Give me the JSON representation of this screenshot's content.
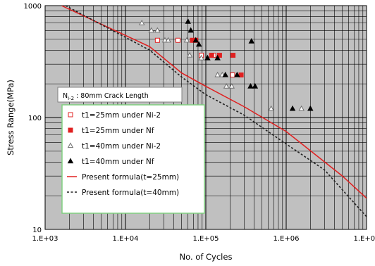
{
  "chart_data": {
    "type": "scatter",
    "title": "",
    "xlabel": "No. of Cycles",
    "ylabel": "Stress Range(MPa)",
    "xscale": "log",
    "yscale": "log",
    "xlim": [
      1000,
      10000000
    ],
    "ylim": [
      10,
      1000
    ],
    "grid": true,
    "x_tick_labels": [
      "1.E+03",
      "1.E+04",
      "1.E+05",
      "1.E+06",
      "1.E+07"
    ],
    "y_tick_labels": [
      "10",
      "100",
      "1000"
    ],
    "annotation": {
      "prefix": "N",
      "subscript": "i-2",
      "suffix": " : 80mm Crack Length"
    },
    "legend_placement": "center-left",
    "series": [
      {
        "name": "t1=25mm under Ni-2",
        "kind": "scatter",
        "marker": "open-square",
        "color": "#e02020",
        "points": [
          [
            25000,
            490
          ],
          [
            45000,
            490
          ],
          [
            88000,
            360
          ],
          [
            125000,
            360
          ],
          [
            215000,
            240
          ]
        ]
      },
      {
        "name": "t1=25mm under Nf",
        "kind": "scatter",
        "marker": "filled-square",
        "color": "#e02020",
        "points": [
          [
            68000,
            490
          ],
          [
            75000,
            490
          ],
          [
            118000,
            360
          ],
          [
            148000,
            360
          ],
          [
            218000,
            360
          ],
          [
            275000,
            240
          ]
        ]
      },
      {
        "name": "t1=40mm under Ni-2",
        "kind": "scatter",
        "marker": "open-triangle",
        "color": "#707070",
        "points": [
          [
            16000,
            700
          ],
          [
            21000,
            600
          ],
          [
            25000,
            600
          ],
          [
            31000,
            490
          ],
          [
            34000,
            490
          ],
          [
            58000,
            490
          ],
          [
            63000,
            360
          ],
          [
            88000,
            340
          ],
          [
            105000,
            340
          ],
          [
            140000,
            240
          ],
          [
            160000,
            240
          ],
          [
            180000,
            190
          ],
          [
            210000,
            190
          ],
          [
            650000,
            120
          ],
          [
            1550000,
            120
          ]
        ]
      },
      {
        "name": "t1=40mm under Nf",
        "kind": "scatter",
        "marker": "filled-triangle",
        "color": "#000000",
        "points": [
          [
            60000,
            720
          ],
          [
            65000,
            600
          ],
          [
            75000,
            490
          ],
          [
            82000,
            450
          ],
          [
            105000,
            340
          ],
          [
            140000,
            340
          ],
          [
            175000,
            240
          ],
          [
            245000,
            240
          ],
          [
            370000,
            480
          ],
          [
            360000,
            190
          ],
          [
            410000,
            190
          ],
          [
            1200000,
            120
          ],
          [
            2000000,
            120
          ]
        ]
      },
      {
        "name": "Present formula(t=25mm)",
        "kind": "line",
        "style": "solid",
        "color": "#e02020",
        "points": [
          [
            1600,
            1000
          ],
          [
            20000,
            430
          ],
          [
            50000,
            250
          ],
          [
            100000,
            190
          ],
          [
            300000,
            125
          ],
          [
            1000000,
            75
          ],
          [
            5000000,
            30
          ],
          [
            10000000,
            19
          ]
        ]
      },
      {
        "name": "Present formula(t=40mm)",
        "kind": "line",
        "style": "dashed",
        "color": "#202020",
        "points": [
          [
            1800,
            1000
          ],
          [
            20000,
            400
          ],
          [
            50000,
            230
          ],
          [
            100000,
            160
          ],
          [
            300000,
            105
          ],
          [
            1000000,
            58
          ],
          [
            3000000,
            34
          ],
          [
            10000000,
            13
          ]
        ]
      }
    ]
  }
}
